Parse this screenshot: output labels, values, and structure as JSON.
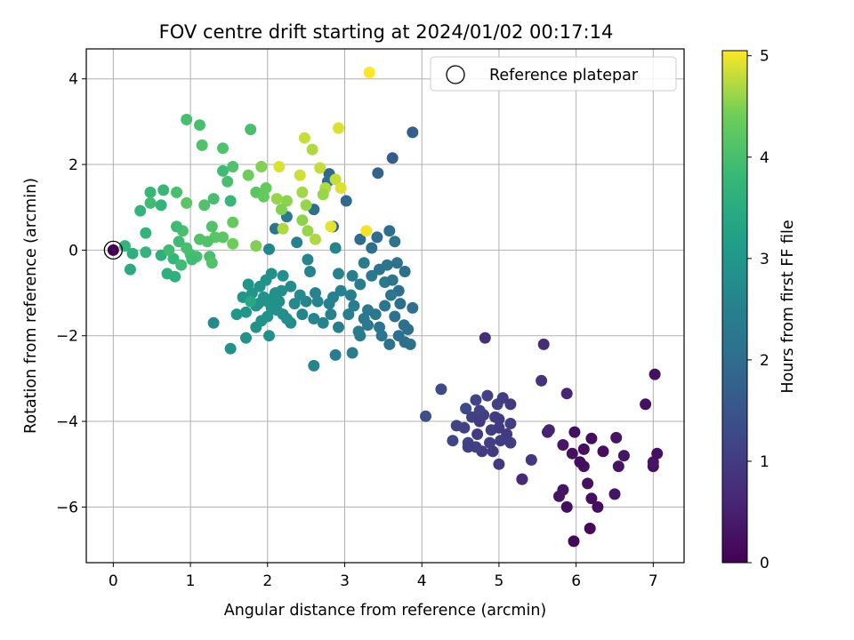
{
  "chart_data": {
    "type": "scatter",
    "title": "FOV centre drift starting at 2024/01/02 00:17:14",
    "xlabel": "Angular distance from reference (arcmin)",
    "ylabel": "Rotation from reference (arcmin)",
    "xlim": [
      -0.35,
      7.4
    ],
    "ylim": [
      -7.3,
      4.7
    ],
    "xticks": [
      "0",
      "1",
      "2",
      "3",
      "4",
      "5",
      "6",
      "7"
    ],
    "yticks": [
      "−6",
      "−4",
      "−2",
      "0",
      "2",
      "4"
    ],
    "grid": true,
    "legend": {
      "location": "top-right",
      "entries": [
        "Reference platepar"
      ]
    },
    "reference_point": {
      "x": 0,
      "y": 0
    },
    "colorbar": {
      "label": "Hours from first FF file",
      "colormap": "viridis",
      "range": [
        0,
        5.05
      ],
      "ticks": [
        "0",
        "1",
        "2",
        "3",
        "4",
        "5"
      ]
    },
    "points": [
      [
        5.97,
        -6.8,
        0.1
      ],
      [
        6.18,
        -6.5,
        0.15
      ],
      [
        5.88,
        -6.0,
        0.2
      ],
      [
        6.28,
        -6.0,
        0.2
      ],
      [
        6.2,
        -5.8,
        0.25
      ],
      [
        5.78,
        -5.75,
        0.3
      ],
      [
        5.83,
        -5.6,
        0.3
      ],
      [
        6.15,
        -5.45,
        0.25
      ],
      [
        6.5,
        -5.7,
        0.3
      ],
      [
        6.55,
        -5.05,
        0.3
      ],
      [
        7.0,
        -5.05,
        0.25
      ],
      [
        7.0,
        -4.95,
        0.3
      ],
      [
        6.1,
        -5.05,
        0.25
      ],
      [
        6.05,
        -4.95,
        0.2
      ],
      [
        5.95,
        -4.75,
        0.25
      ],
      [
        6.1,
        -4.65,
        0.25
      ],
      [
        6.2,
        -4.4,
        0.2
      ],
      [
        6.35,
        -4.7,
        0.2
      ],
      [
        6.52,
        -4.38,
        0.3
      ],
      [
        6.62,
        -4.8,
        0.3
      ],
      [
        7.05,
        -4.75,
        0.25
      ],
      [
        5.98,
        -4.25,
        0.2
      ],
      [
        5.83,
        -4.55,
        0.35
      ],
      [
        6.9,
        -3.6,
        0.25
      ],
      [
        7.02,
        -2.9,
        0.25
      ],
      [
        5.63,
        -4.25,
        0.55
      ],
      [
        5.65,
        -4.2,
        0.55
      ],
      [
        5.3,
        -5.35,
        0.6
      ],
      [
        5.3,
        -5.35,
        0.65
      ],
      [
        5.42,
        -4.9,
        0.9
      ],
      [
        5.0,
        -5.0,
        0.95
      ],
      [
        5.58,
        -2.2,
        0.7
      ],
      [
        5.55,
        -3.05,
        0.85
      ],
      [
        5.88,
        -3.35,
        0.6
      ],
      [
        4.82,
        -2.05,
        0.75
      ],
      [
        4.57,
        -3.7,
        1.3
      ],
      [
        4.25,
        -3.25,
        1.3
      ],
      [
        4.05,
        -3.88,
        1.4
      ],
      [
        4.4,
        -4.45,
        1.2
      ],
      [
        4.55,
        -4.15,
        1.1
      ],
      [
        4.45,
        -4.1,
        1.1
      ],
      [
        4.6,
        -4.5,
        1.15
      ],
      [
        4.65,
        -3.9,
        1.1
      ],
      [
        4.7,
        -3.5,
        1.15
      ],
      [
        4.72,
        -4.3,
        1.0
      ],
      [
        4.75,
        -4.0,
        1.0
      ],
      [
        4.8,
        -3.85,
        1.05
      ],
      [
        4.78,
        -4.7,
        1.0
      ],
      [
        4.85,
        -3.4,
        1.1
      ],
      [
        4.9,
        -4.2,
        1.05
      ],
      [
        4.92,
        -4.7,
        1.0
      ],
      [
        4.95,
        -3.9,
        1.0
      ],
      [
        4.98,
        -3.6,
        1.1
      ],
      [
        5.0,
        -4.15,
        1.0
      ],
      [
        5.05,
        -3.45,
        1.05
      ],
      [
        5.1,
        -4.3,
        1.0
      ],
      [
        5.15,
        -4.5,
        1.05
      ],
      [
        5.15,
        -4.05,
        1.05
      ],
      [
        4.7,
        -4.6,
        1.1
      ],
      [
        4.88,
        -4.5,
        1.05
      ],
      [
        5.02,
        -4.45,
        1.05
      ],
      [
        5.15,
        -3.6,
        1.0
      ],
      [
        4.6,
        -4.6,
        1.05
      ],
      [
        4.75,
        -3.75,
        1.1
      ],
      [
        5.0,
        -3.95,
        1.0
      ],
      [
        3.88,
        2.75,
        1.7
      ],
      [
        3.62,
        2.15,
        1.65
      ],
      [
        3.43,
        1.8,
        1.8
      ],
      [
        3.02,
        1.15,
        1.9
      ],
      [
        2.8,
        1.78,
        1.9
      ],
      [
        2.78,
        1.6,
        2.0
      ],
      [
        2.6,
        0.95,
        2.1
      ],
      [
        2.85,
        0.55,
        1.9
      ],
      [
        3.2,
        0.25,
        2.0
      ],
      [
        3.35,
        0.05,
        2.1
      ],
      [
        3.42,
        0.3,
        2.0
      ],
      [
        3.58,
        0.45,
        2.1
      ],
      [
        3.65,
        0.2,
        2.2
      ],
      [
        2.1,
        0.5,
        2.2
      ],
      [
        2.25,
        0.78,
        2.3
      ],
      [
        2.38,
        0.18,
        2.5
      ],
      [
        2.88,
        0.05,
        2.6
      ],
      [
        2.02,
        0.02,
        2.6
      ],
      [
        2.52,
        -0.22,
        2.6
      ],
      [
        2.55,
        -0.5,
        2.55
      ],
      [
        2.92,
        -0.55,
        2.55
      ],
      [
        3.1,
        -0.6,
        2.4
      ],
      [
        3.25,
        -0.3,
        2.4
      ],
      [
        3.35,
        -0.6,
        2.3
      ],
      [
        3.45,
        -0.45,
        2.2
      ],
      [
        3.55,
        -0.35,
        2.2
      ],
      [
        3.68,
        -0.3,
        2.15
      ],
      [
        3.78,
        -0.5,
        2.1
      ],
      [
        3.52,
        -0.75,
        2.3
      ],
      [
        3.62,
        -0.7,
        2.2
      ],
      [
        3.7,
        -0.95,
        2.1
      ],
      [
        3.2,
        -0.8,
        2.35
      ],
      [
        3.08,
        -1.05,
        2.4
      ],
      [
        2.95,
        -0.95,
        2.5
      ],
      [
        2.85,
        -1.1,
        2.5
      ],
      [
        2.8,
        -1.25,
        2.5
      ],
      [
        2.62,
        -1.0,
        2.55
      ],
      [
        2.5,
        -1.2,
        2.6
      ],
      [
        2.45,
        -1.5,
        2.6
      ],
      [
        2.6,
        -1.6,
        2.6
      ],
      [
        2.65,
        -1.2,
        2.6
      ],
      [
        2.72,
        -1.7,
        2.55
      ],
      [
        2.82,
        -1.5,
        2.5
      ],
      [
        2.92,
        -1.8,
        2.45
      ],
      [
        3.05,
        -1.5,
        2.4
      ],
      [
        3.12,
        -1.3,
        2.4
      ],
      [
        3.18,
        -1.9,
        2.35
      ],
      [
        3.25,
        -1.6,
        2.3
      ],
      [
        3.3,
        -1.75,
        2.3
      ],
      [
        3.4,
        -1.5,
        2.25
      ],
      [
        3.45,
        -1.8,
        2.2
      ],
      [
        3.52,
        -1.3,
        2.2
      ],
      [
        3.6,
        -1.05,
        2.2
      ],
      [
        3.65,
        -1.55,
        2.15
      ],
      [
        3.72,
        -1.25,
        2.1
      ],
      [
        3.77,
        -1.75,
        2.1
      ],
      [
        3.82,
        -1.85,
        2.1
      ],
      [
        3.88,
        -1.35,
        2.05
      ],
      [
        3.48,
        -2.0,
        2.2
      ],
      [
        3.58,
        -2.2,
        2.15
      ],
      [
        3.7,
        -2.0,
        2.1
      ],
      [
        3.78,
        -2.15,
        2.1
      ],
      [
        3.85,
        -2.2,
        2.1
      ],
      [
        2.88,
        -2.45,
        2.4
      ],
      [
        3.1,
        -2.4,
        2.4
      ],
      [
        2.6,
        -2.7,
        2.6
      ],
      [
        3.2,
        -2.0,
        2.35
      ],
      [
        3.3,
        -1.4,
        2.3
      ],
      [
        2.35,
        -1.25,
        2.7
      ],
      [
        2.42,
        -1.05,
        2.7
      ],
      [
        2.3,
        -1.7,
        2.7
      ],
      [
        2.2,
        -1.5,
        2.8
      ],
      [
        2.15,
        -1.2,
        2.8
      ],
      [
        2.1,
        -1.0,
        2.85
      ],
      [
        2.05,
        -1.35,
        2.85
      ],
      [
        2.0,
        -1.55,
        2.9
      ],
      [
        1.95,
        -1.1,
        2.9
      ],
      [
        1.9,
        -0.85,
        2.9
      ],
      [
        1.85,
        -1.3,
        2.95
      ],
      [
        1.8,
        -1.0,
        2.95
      ],
      [
        1.72,
        -1.45,
        3.0
      ],
      [
        1.75,
        -0.8,
        3.0
      ],
      [
        1.68,
        -1.1,
        3.0
      ],
      [
        1.6,
        -1.5,
        3.0
      ],
      [
        1.52,
        -2.3,
        2.9
      ],
      [
        1.72,
        -2.05,
        2.9
      ],
      [
        1.85,
        -1.8,
        2.9
      ],
      [
        2.02,
        -2.0,
        2.85
      ],
      [
        1.3,
        -1.7,
        2.7
      ],
      [
        2.05,
        -0.55,
        2.85
      ],
      [
        2.2,
        -0.6,
        2.8
      ],
      [
        2.3,
        -0.85,
        2.75
      ],
      [
        1.98,
        -0.7,
        2.9
      ],
      [
        2.0,
        -1.2,
        2.9
      ],
      [
        2.12,
        -1.4,
        2.85
      ],
      [
        2.25,
        -1.6,
        2.8
      ],
      [
        2.18,
        -0.95,
        2.8
      ],
      [
        1.92,
        -1.65,
        2.9
      ],
      [
        2.08,
        -1.1,
        2.85
      ],
      [
        1.88,
        -1.25,
        2.9
      ],
      [
        1.78,
        -1.2,
        3.4
      ],
      [
        3.32,
        4.15,
        5.05
      ],
      [
        2.92,
        2.85,
        4.9
      ],
      [
        2.48,
        2.62,
        4.8
      ],
      [
        2.58,
        2.35,
        4.7
      ],
      [
        2.15,
        1.95,
        4.9
      ],
      [
        2.68,
        1.92,
        4.8
      ],
      [
        2.42,
        1.75,
        4.85
      ],
      [
        2.75,
        1.45,
        4.7
      ],
      [
        2.88,
        1.65,
        4.8
      ],
      [
        2.95,
        1.45,
        4.9
      ],
      [
        2.45,
        1.35,
        4.65
      ],
      [
        2.72,
        1.3,
        4.6
      ],
      [
        2.5,
        1.05,
        4.6
      ],
      [
        2.25,
        1.15,
        4.55
      ],
      [
        2.12,
        1.2,
        4.6
      ],
      [
        2.18,
        0.95,
        4.5
      ],
      [
        2.45,
        0.7,
        4.55
      ],
      [
        2.62,
        0.25,
        4.7
      ],
      [
        2.52,
        0.45,
        4.6
      ],
      [
        2.82,
        0.55,
        4.95
      ],
      [
        3.28,
        0.45,
        5.0
      ],
      [
        2.2,
        0.5,
        4.7
      ],
      [
        1.55,
        1.95,
        4.1
      ],
      [
        1.78,
        2.82,
        4.0
      ],
      [
        1.75,
        1.75,
        4.4
      ],
      [
        1.92,
        1.95,
        4.5
      ],
      [
        1.85,
        1.35,
        4.2
      ],
      [
        1.98,
        1.45,
        4.3
      ],
      [
        1.95,
        1.25,
        4.3
      ],
      [
        1.48,
        1.6,
        4.0
      ],
      [
        1.52,
        1.15,
        3.8
      ],
      [
        1.42,
        1.85,
        3.9
      ],
      [
        1.3,
        1.2,
        4.0
      ],
      [
        1.18,
        1.05,
        4.1
      ],
      [
        0.95,
        3.05,
        4.0
      ],
      [
        1.12,
        2.92,
        4.0
      ],
      [
        1.15,
        2.45,
        4.1
      ],
      [
        1.42,
        2.38,
        4.1
      ],
      [
        0.95,
        1.1,
        4.2
      ],
      [
        0.82,
        1.35,
        4.0
      ],
      [
        0.65,
        1.4,
        3.8
      ],
      [
        0.62,
        1.05,
        3.7
      ],
      [
        0.48,
        1.35,
        3.8
      ],
      [
        0.48,
        1.1,
        3.9
      ],
      [
        0.35,
        0.92,
        3.7
      ],
      [
        0.42,
        0.4,
        3.7
      ],
      [
        0.25,
        -0.08,
        3.6
      ],
      [
        0.15,
        0.1,
        3.7
      ],
      [
        0.22,
        -0.45,
        3.5
      ],
      [
        0.42,
        -0.05,
        3.7
      ],
      [
        0.62,
        -0.12,
        3.6
      ],
      [
        0.7,
        -0.55,
        3.6
      ],
      [
        0.8,
        -0.62,
        3.6
      ],
      [
        0.78,
        -0.2,
        3.8
      ],
      [
        0.88,
        -0.35,
        3.9
      ],
      [
        0.9,
        0.45,
        4.0
      ],
      [
        0.85,
        0.2,
        3.9
      ],
      [
        0.95,
        0.05,
        4.0
      ],
      [
        1.0,
        -0.1,
        4.0
      ],
      [
        1.08,
        -0.15,
        4.0
      ],
      [
        1.12,
        0.25,
        4.1
      ],
      [
        1.28,
        0.55,
        4.1
      ],
      [
        1.32,
        0.3,
        4.2
      ],
      [
        1.25,
        -0.15,
        4.0
      ],
      [
        1.28,
        -0.3,
        4.1
      ],
      [
        1.42,
        0.3,
        4.2
      ],
      [
        1.55,
        0.65,
        4.3
      ],
      [
        1.55,
        0.15,
        4.4
      ],
      [
        1.85,
        0.1,
        4.5
      ],
      [
        1.02,
        -0.22,
        3.9
      ],
      [
        0.82,
        0.55,
        3.9
      ],
      [
        0.72,
        0.0,
        3.9
      ],
      [
        1.22,
        0.2,
        4.1
      ]
    ]
  }
}
